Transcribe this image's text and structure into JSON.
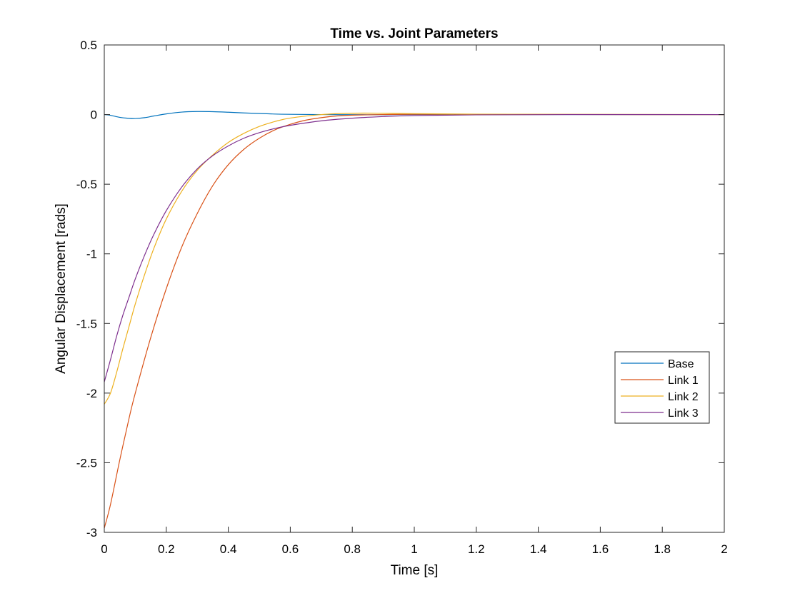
{
  "chart_data": {
    "type": "line",
    "title": "Time vs. Joint Parameters",
    "xlabel": "Time [s]",
    "ylabel": "Angular Displacement [rads]",
    "xlim": [
      0,
      2
    ],
    "ylim": [
      -3,
      0.5
    ],
    "xticks": [
      0,
      0.2,
      0.4,
      0.6,
      0.8,
      1,
      1.2,
      1.4,
      1.6,
      1.8,
      2
    ],
    "yticks": [
      -3,
      -2.5,
      -2,
      -1.5,
      -1,
      -0.5,
      0,
      0.5
    ],
    "xtick_labels": [
      "0",
      "0.2",
      "0.4",
      "0.6",
      "0.8",
      "1",
      "1.2",
      "1.4",
      "1.6",
      "1.8",
      "2"
    ],
    "ytick_labels": [
      "-3",
      "-2.5",
      "-2",
      "-1.5",
      "-1",
      "-0.5",
      "0",
      "0.5"
    ],
    "grid": false,
    "legend_position": "right",
    "series": [
      {
        "name": "Base",
        "color": "#0072BD",
        "x": [
          0,
          0.02,
          0.05,
          0.08,
          0.1,
          0.13,
          0.16,
          0.2,
          0.25,
          0.3,
          0.35,
          0.4,
          0.45,
          0.5,
          0.55,
          0.6,
          0.7,
          0.8,
          0.9,
          1.0,
          1.2,
          1.5,
          2.0
        ],
        "y": [
          0,
          -0.005,
          -0.02,
          -0.027,
          -0.028,
          -0.022,
          -0.01,
          0.005,
          0.018,
          0.022,
          0.021,
          0.017,
          0.012,
          0.008,
          0.004,
          0.002,
          0.0,
          -0.001,
          -0.001,
          0.0,
          0.0,
          0.0,
          0.0
        ]
      },
      {
        "name": "Link 1",
        "color": "#D95319",
        "x": [
          0,
          0.02,
          0.05,
          0.08,
          0.1,
          0.15,
          0.2,
          0.25,
          0.3,
          0.35,
          0.4,
          0.45,
          0.5,
          0.55,
          0.6,
          0.65,
          0.7,
          0.75,
          0.8,
          0.9,
          1.0,
          1.2,
          1.5,
          2.0
        ],
        "y": [
          -2.97,
          -2.8,
          -2.48,
          -2.18,
          -2.0,
          -1.6,
          -1.25,
          -0.95,
          -0.71,
          -0.51,
          -0.36,
          -0.25,
          -0.17,
          -0.11,
          -0.07,
          -0.04,
          -0.022,
          -0.01,
          -0.004,
          0.0,
          0.002,
          0.002,
          0.001,
          0.0
        ]
      },
      {
        "name": "Link 2",
        "color": "#EDB120",
        "x": [
          0,
          0.02,
          0.04,
          0.06,
          0.08,
          0.1,
          0.13,
          0.16,
          0.2,
          0.25,
          0.3,
          0.35,
          0.4,
          0.45,
          0.5,
          0.55,
          0.6,
          0.7,
          0.8,
          0.9,
          1.0,
          1.2,
          1.5,
          2.0
        ],
        "y": [
          -2.08,
          -2.0,
          -1.85,
          -1.68,
          -1.52,
          -1.36,
          -1.15,
          -0.96,
          -0.75,
          -0.55,
          -0.4,
          -0.29,
          -0.2,
          -0.135,
          -0.085,
          -0.05,
          -0.025,
          0.0,
          0.01,
          0.01,
          0.007,
          0.003,
          0.001,
          0.0
        ]
      },
      {
        "name": "Link 3",
        "color": "#7E2F8E",
        "x": [
          0,
          0.02,
          0.04,
          0.06,
          0.08,
          0.1,
          0.13,
          0.16,
          0.2,
          0.25,
          0.3,
          0.35,
          0.4,
          0.45,
          0.5,
          0.55,
          0.6,
          0.7,
          0.8,
          0.9,
          1.0,
          1.2,
          1.5,
          2.0
        ],
        "y": [
          -1.92,
          -1.76,
          -1.59,
          -1.44,
          -1.31,
          -1.18,
          -1.01,
          -0.86,
          -0.69,
          -0.52,
          -0.39,
          -0.295,
          -0.225,
          -0.17,
          -0.13,
          -0.1,
          -0.077,
          -0.045,
          -0.026,
          -0.014,
          -0.007,
          -0.002,
          0.0,
          0.0
        ]
      }
    ]
  }
}
